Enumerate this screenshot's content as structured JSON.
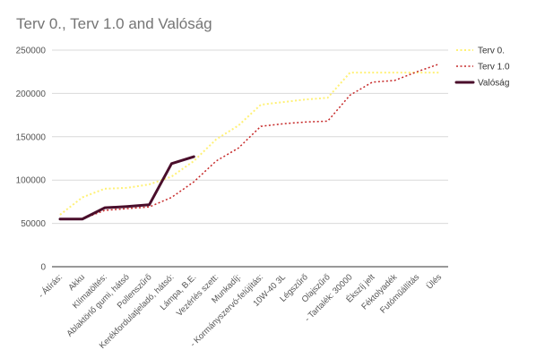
{
  "chart_data": {
    "type": "line",
    "title": "Terv 0., Terv 1.0 and Valóság",
    "xlabel": "",
    "ylabel": "",
    "ylim": [
      0,
      250000
    ],
    "yticks": [
      0,
      50000,
      100000,
      150000,
      200000,
      250000
    ],
    "grid": true,
    "legend_position": "right",
    "categories": [
      "- Átírás:",
      "Akku",
      "Klímatöltés:",
      "Ablaktörlő gumi, hátsó",
      "Pollenszűrő",
      "Kerékfordulatjeladó, hátsó:",
      "Lámpa, B.E.",
      "Vezérlés szett:",
      "Munkadíj:",
      "- Kormányszervó-felújítás:",
      "10W-40 3L",
      "Légszűrő",
      "Olajszűrő",
      "- Tartalék: 30000",
      "Ékszíj jelt",
      "Féktolyadék",
      "Futóműállítás",
      "Ülés"
    ],
    "series": [
      {
        "name": "Terv 0.",
        "color": "#fff176",
        "style": "dotted",
        "values": [
          60000,
          80000,
          90000,
          91000,
          95000,
          104000,
          122000,
          147000,
          163000,
          187000,
          190000,
          193000,
          195000,
          224000,
          224000,
          224000,
          224000,
          224000
        ]
      },
      {
        "name": "Terv 1.0",
        "color": "#c62828",
        "style": "dotted",
        "values": [
          55000,
          55000,
          65000,
          67000,
          69000,
          80000,
          98000,
          122000,
          137000,
          162000,
          165000,
          167000,
          168000,
          198000,
          213000,
          215000,
          225000,
          234000
        ]
      },
      {
        "name": "Valóság",
        "color": "#4a0e2b",
        "style": "solid",
        "values": [
          55000,
          55000,
          68000,
          69500,
          71500,
          119000,
          127000,
          null,
          null,
          null,
          null,
          null,
          null,
          null,
          null,
          null,
          null,
          null
        ]
      }
    ]
  }
}
